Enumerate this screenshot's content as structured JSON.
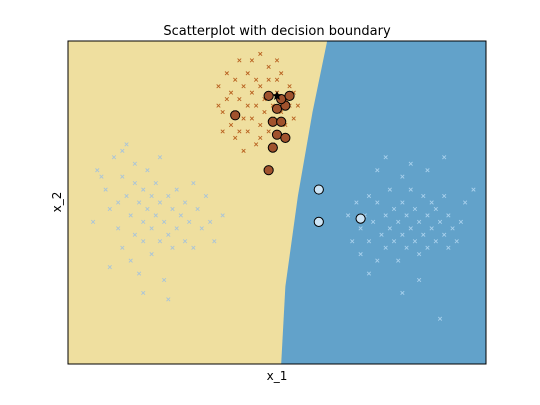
{
  "chart_data": {
    "type": "scatter",
    "title": "Scatterplot with decision boundary",
    "xlabel": "x_1",
    "ylabel": "x_2",
    "xlim": [
      0,
      10
    ],
    "ylim": [
      0,
      10
    ],
    "grid": false,
    "region_colors": {
      "left": "#EFDF9F",
      "right": "#62A2CA"
    },
    "boundary": [
      [
        6.2,
        10
      ],
      [
        5.85,
        7.8
      ],
      [
        5.5,
        5.2
      ],
      [
        5.2,
        2.4
      ],
      [
        5.1,
        0
      ]
    ],
    "cluster_left": {
      "color": "#A8C4DA",
      "marker": "x",
      "points": [
        [
          0.7,
          6.0
        ],
        [
          0.9,
          5.4
        ],
        [
          1.0,
          4.8
        ],
        [
          1.1,
          6.4
        ],
        [
          1.2,
          5.0
        ],
        [
          1.2,
          4.2
        ],
        [
          1.3,
          5.8
        ],
        [
          1.3,
          3.6
        ],
        [
          1.4,
          5.2
        ],
        [
          1.4,
          6.8
        ],
        [
          1.5,
          4.6
        ],
        [
          1.5,
          3.2
        ],
        [
          1.6,
          5.6
        ],
        [
          1.6,
          4.0
        ],
        [
          1.6,
          6.2
        ],
        [
          1.7,
          5.0
        ],
        [
          1.7,
          2.8
        ],
        [
          1.8,
          4.4
        ],
        [
          1.8,
          5.4
        ],
        [
          1.8,
          3.8
        ],
        [
          1.9,
          6.0
        ],
        [
          1.9,
          4.8
        ],
        [
          2.0,
          5.2
        ],
        [
          2.0,
          3.4
        ],
        [
          2.0,
          4.2
        ],
        [
          2.1,
          5.6
        ],
        [
          2.1,
          4.6
        ],
        [
          2.2,
          3.8
        ],
        [
          2.2,
          5.0
        ],
        [
          2.2,
          6.4
        ],
        [
          2.3,
          4.4
        ],
        [
          2.3,
          2.6
        ],
        [
          2.4,
          5.2
        ],
        [
          2.4,
          4.0
        ],
        [
          2.5,
          4.8
        ],
        [
          2.5,
          3.6
        ],
        [
          2.6,
          5.4
        ],
        [
          2.6,
          4.2
        ],
        [
          2.7,
          4.6
        ],
        [
          2.8,
          3.8
        ],
        [
          2.8,
          5.0
        ],
        [
          2.9,
          4.4
        ],
        [
          3.0,
          5.6
        ],
        [
          3.0,
          3.6
        ],
        [
          3.1,
          4.8
        ],
        [
          3.2,
          4.2
        ],
        [
          3.3,
          5.2
        ],
        [
          3.5,
          3.8
        ],
        [
          3.7,
          4.6
        ],
        [
          0.6,
          4.4
        ],
        [
          1.0,
          3.0
        ],
        [
          2.4,
          2.0
        ],
        [
          1.8,
          2.2
        ],
        [
          3.4,
          4.4
        ],
        [
          0.8,
          5.8
        ],
        [
          1.3,
          6.6
        ]
      ]
    },
    "cluster_top": {
      "color": "#B8601F",
      "marker": "x",
      "points": [
        [
          3.6,
          8.6
        ],
        [
          3.7,
          7.8
        ],
        [
          3.8,
          8.2
        ],
        [
          3.8,
          9.0
        ],
        [
          3.9,
          7.4
        ],
        [
          3.9,
          8.4
        ],
        [
          4.0,
          7.8
        ],
        [
          4.0,
          8.8
        ],
        [
          4.0,
          7.0
        ],
        [
          4.1,
          8.2
        ],
        [
          4.1,
          9.4
        ],
        [
          4.2,
          7.6
        ],
        [
          4.2,
          8.6
        ],
        [
          4.3,
          8.0
        ],
        [
          4.3,
          7.2
        ],
        [
          4.3,
          9.0
        ],
        [
          4.4,
          8.4
        ],
        [
          4.4,
          7.6
        ],
        [
          4.5,
          8.8
        ],
        [
          4.5,
          8.0
        ],
        [
          4.5,
          6.8
        ],
        [
          4.6,
          7.4
        ],
        [
          4.6,
          8.6
        ],
        [
          4.6,
          9.6
        ],
        [
          4.7,
          8.2
        ],
        [
          4.7,
          7.8
        ],
        [
          4.8,
          8.8
        ],
        [
          4.8,
          7.2
        ],
        [
          4.8,
          9.2
        ],
        [
          4.9,
          8.0
        ],
        [
          4.9,
          7.6
        ],
        [
          5.0,
          8.4
        ],
        [
          5.0,
          8.8
        ],
        [
          5.1,
          7.8
        ],
        [
          5.1,
          9.0
        ],
        [
          5.2,
          8.2
        ],
        [
          5.2,
          7.4
        ],
        [
          5.3,
          8.6
        ],
        [
          5.3,
          8.0
        ],
        [
          5.4,
          7.6
        ],
        [
          5.4,
          8.4
        ],
        [
          5.5,
          8.0
        ],
        [
          5.0,
          9.4
        ],
        [
          4.4,
          9.4
        ],
        [
          3.7,
          7.2
        ],
        [
          4.2,
          6.6
        ],
        [
          4.9,
          6.8
        ],
        [
          3.6,
          8.0
        ],
        [
          4.1,
          7.2
        ],
        [
          4.6,
          7.0
        ]
      ]
    },
    "cluster_right": {
      "color": "#A8D0EC",
      "marker": "x",
      "points": [
        [
          6.7,
          4.6
        ],
        [
          6.8,
          3.8
        ],
        [
          6.9,
          5.0
        ],
        [
          7.0,
          4.2
        ],
        [
          7.0,
          3.4
        ],
        [
          7.1,
          4.6
        ],
        [
          7.2,
          5.2
        ],
        [
          7.2,
          3.8
        ],
        [
          7.3,
          4.4
        ],
        [
          7.4,
          3.2
        ],
        [
          7.4,
          5.0
        ],
        [
          7.5,
          4.0
        ],
        [
          7.6,
          4.6
        ],
        [
          7.6,
          3.6
        ],
        [
          7.7,
          5.4
        ],
        [
          7.7,
          4.2
        ],
        [
          7.8,
          3.8
        ],
        [
          7.8,
          4.8
        ],
        [
          7.9,
          4.4
        ],
        [
          7.9,
          3.2
        ],
        [
          8.0,
          4.0
        ],
        [
          8.0,
          5.0
        ],
        [
          8.1,
          4.6
        ],
        [
          8.1,
          3.6
        ],
        [
          8.2,
          4.2
        ],
        [
          8.2,
          5.4
        ],
        [
          8.3,
          3.8
        ],
        [
          8.3,
          4.8
        ],
        [
          8.4,
          4.4
        ],
        [
          8.4,
          3.4
        ],
        [
          8.5,
          4.0
        ],
        [
          8.5,
          5.2
        ],
        [
          8.6,
          4.6
        ],
        [
          8.6,
          3.6
        ],
        [
          8.7,
          4.2
        ],
        [
          8.7,
          5.0
        ],
        [
          8.8,
          3.8
        ],
        [
          8.8,
          4.8
        ],
        [
          8.9,
          4.4
        ],
        [
          9.0,
          4.0
        ],
        [
          9.0,
          5.2
        ],
        [
          9.1,
          3.6
        ],
        [
          9.1,
          4.6
        ],
        [
          9.2,
          4.2
        ],
        [
          9.3,
          3.8
        ],
        [
          9.4,
          4.4
        ],
        [
          9.5,
          5.0
        ],
        [
          8.2,
          6.2
        ],
        [
          8.6,
          6.0
        ],
        [
          9.0,
          6.4
        ],
        [
          7.4,
          6.0
        ],
        [
          8.9,
          1.4
        ],
        [
          8.0,
          2.2
        ],
        [
          7.2,
          2.8
        ],
        [
          9.7,
          5.4
        ],
        [
          8.0,
          5.8
        ],
        [
          7.6,
          6.4
        ],
        [
          8.4,
          2.6
        ]
      ]
    },
    "highlight_top": {
      "color": "#A0522D",
      "edge": "#000000",
      "points": [
        [
          4.0,
          7.7
        ],
        [
          4.8,
          8.3
        ],
        [
          4.9,
          7.5
        ],
        [
          5.0,
          7.9
        ],
        [
          5.0,
          7.1
        ],
        [
          4.9,
          6.7
        ],
        [
          5.2,
          8.0
        ],
        [
          5.1,
          7.5
        ],
        [
          5.2,
          7.0
        ],
        [
          4.8,
          6.0
        ],
        [
          5.1,
          8.2
        ],
        [
          5.3,
          8.3
        ]
      ]
    },
    "highlight_right": {
      "color": "#CDE4F5",
      "edge": "#000000",
      "points": [
        [
          6.0,
          5.4
        ],
        [
          6.0,
          4.4
        ],
        [
          7.0,
          4.5
        ]
      ]
    },
    "star": {
      "color": "#000000",
      "point": [
        5.0,
        8.3
      ]
    }
  }
}
